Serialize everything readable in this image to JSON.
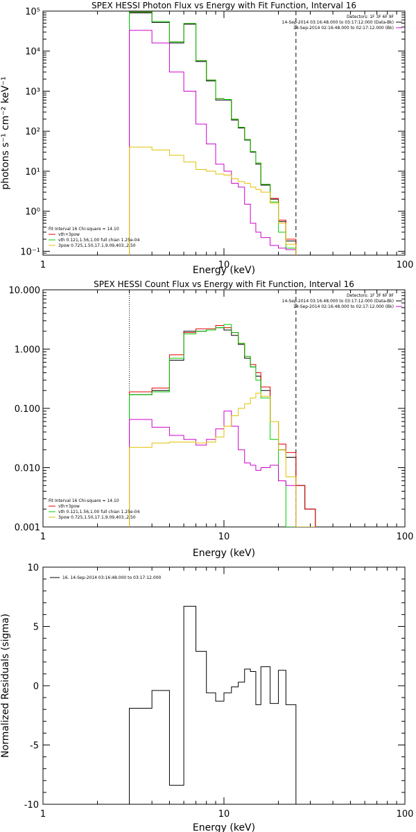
{
  "chart_data": [
    {
      "type": "line",
      "title": "SPEX HESSI Photon Flux vs Energy with Fit Function, Interval 16",
      "xlabel": "Energy (keV)",
      "ylabel": "photons s⁻¹ cm⁻² keV⁻¹",
      "xlim": [
        1,
        100
      ],
      "ylim": [
        0.08,
        100000
      ],
      "x_scale": "log",
      "y_scale": "log",
      "x_tick_labels": [
        "1",
        "10",
        "100"
      ],
      "y_tick_labels": [
        "10⁻¹",
        "10⁰",
        "10¹",
        "10²",
        "10³",
        "10⁴",
        "10⁵"
      ],
      "vlines": [
        {
          "x": 3,
          "style": "dotted"
        },
        {
          "x": 25,
          "style": "dashed"
        }
      ],
      "legend_topright": {
        "lines": [
          "Detectors: 1F 3F 6F 9F",
          "14-Sep-2014 03:16:48.000 to 03:17:12.000 (Data-Bk)",
          "14-Sep-2014 02:16:48.000 to 02:17:12.000 (Bk)"
        ],
        "colors": [
          "#000000",
          "#000000",
          "#cc00cc"
        ]
      },
      "legend_bottomleft": {
        "lines": [
          "Fit Interval 16   Chi-square = 14.10",
          "vth+3pow",
          "vth 0.121,1.56,1.00  full chian 1.25e-04",
          "3pow 0.725,1.50,17.1,9.09,403.,2.50"
        ],
        "colors": [
          "#000000",
          "#e00000",
          "#00cc00",
          "#e0c000"
        ]
      },
      "edges": [
        3,
        4,
        5,
        6,
        7,
        8,
        9,
        10,
        11,
        12,
        13,
        14,
        15,
        16,
        18,
        20,
        22,
        25
      ],
      "series": [
        {
          "color": "#000000",
          "values": [
            90000,
            52000,
            16000,
            47000,
            5500,
            1800,
            600,
            600,
            190,
            120,
            60,
            30,
            15,
            4.5,
            2,
            0.55,
            0.18
          ]
        },
        {
          "color": "#e00000",
          "values": [
            95000,
            55000,
            17000,
            49000,
            5800,
            1900,
            650,
            620,
            200,
            125,
            62,
            31,
            16,
            4.7,
            2.1,
            0.6,
            0.2
          ]
        },
        {
          "color": "#00cc00",
          "values": [
            95000,
            55000,
            17000,
            49000,
            5800,
            1900,
            650,
            620,
            200,
            125,
            62,
            31,
            16,
            4.7,
            1.7,
            0.3,
            0.12
          ]
        },
        {
          "color": "#cc00cc",
          "values": [
            33000,
            16000,
            3000,
            1000,
            150,
            48,
            15,
            10,
            5,
            4,
            1.5,
            0.5,
            0.3,
            0.22,
            0.14,
            0.12,
            0.11
          ]
        },
        {
          "color": "#e0c000",
          "values": [
            40,
            34,
            25,
            17,
            11,
            10,
            8.5,
            8,
            6.5,
            5.5,
            5,
            4,
            3.5,
            3,
            1.6,
            0.5,
            0.15
          ]
        }
      ]
    },
    {
      "type": "line",
      "title": "SPEX HESSI Count Flux vs Energy with Fit Function, Interval 16",
      "xlabel": "Energy (keV)",
      "ylabel": "",
      "xlim": [
        1,
        100
      ],
      "ylim": [
        0.001,
        10
      ],
      "x_scale": "log",
      "y_scale": "log",
      "x_tick_labels": [
        "1",
        "10",
        "100"
      ],
      "y_tick_labels": [
        "0.001",
        "0.010",
        "0.100",
        "1.000",
        "10.000"
      ],
      "vlines": [
        {
          "x": 3,
          "style": "dotted"
        },
        {
          "x": 25,
          "style": "dashed"
        }
      ],
      "legend_topright": {
        "lines": [
          "Detectors: 1F 3F 6F 9F",
          "14-Sep-2014 03:16:48.000 to 03:17:12.000 (Data-Bk)",
          "14-Sep-2014 02:16:48.000 to 02:17:12.000 (Bk)"
        ],
        "colors": [
          "#000000",
          "#000000",
          "#cc00cc"
        ]
      },
      "legend_bottomleft": {
        "lines": [
          "Fit Interval 16   Chi-square = 14.10",
          "vth+3pow",
          "vth 0.121,1.56,1.00  full chian 1.25e-04",
          "3pow 0.725,1.50,17.1,9.09,403.,2.50"
        ],
        "colors": [
          "#000000",
          "#e00000",
          "#00cc00",
          "#e0c000"
        ]
      },
      "edges": [
        3,
        4,
        5,
        6,
        7,
        8,
        9,
        10,
        11,
        12,
        13,
        14,
        15,
        16,
        18,
        20,
        22,
        25,
        28,
        32
      ],
      "series": [
        {
          "color": "#000000",
          "values": [
            0.17,
            0.2,
            0.65,
            2,
            2,
            2.1,
            2.3,
            2.1,
            1.7,
            1.2,
            0.7,
            0.5,
            0.35,
            0.2,
            0.06,
            0.02,
            0.015,
            0.005,
            0.002
          ]
        },
        {
          "color": "#e00000",
          "values": [
            0.19,
            0.22,
            0.8,
            1.9,
            2.2,
            2.2,
            2.5,
            2.3,
            1.9,
            1.25,
            0.75,
            0.55,
            0.4,
            0.23,
            0.06,
            0.025,
            0.018,
            0.005,
            0.002
          ]
        },
        {
          "color": "#00cc00",
          "values": [
            0.17,
            0.19,
            0.7,
            1.8,
            2,
            2.1,
            2.3,
            2.6,
            1.9,
            1.25,
            0.75,
            0.5,
            0.3,
            0.15,
            0.03,
            0.006,
            0.001,
            0.0009,
            0.0009
          ]
        },
        {
          "color": "#cc00cc",
          "values": [
            0.065,
            0.048,
            0.035,
            0.03,
            0.024,
            0.03,
            0.045,
            0.09,
            0.05,
            0.02,
            0.012,
            0.011,
            0.009,
            0.01,
            0.011,
            0.006,
            0.005,
            0.0009,
            0.0009
          ]
        },
        {
          "color": "#e0c000",
          "values": [
            0.022,
            0.026,
            0.027,
            0.027,
            0.026,
            0.027,
            0.033,
            0.05,
            0.075,
            0.1,
            0.12,
            0.15,
            0.18,
            0.16,
            0.06,
            0.02,
            0.007,
            0.0009,
            0.0009
          ]
        }
      ]
    },
    {
      "type": "line",
      "title": "",
      "xlabel": "Energy (keV)",
      "ylabel": "Normalized Residuals (sigma)",
      "xlim": [
        1,
        100
      ],
      "ylim": [
        -10,
        10
      ],
      "x_scale": "log",
      "y_scale": "linear",
      "x_tick_labels": [
        "1",
        "10",
        "100"
      ],
      "y_tick_labels": [
        "-10",
        "-5",
        "0",
        "5",
        "10"
      ],
      "legend": "16. 14-Sep-2014 03:16:48.000 to 03:17:12.000",
      "edges": [
        3,
        4,
        5,
        6,
        7,
        8,
        9,
        10,
        11,
        12,
        13,
        14,
        15,
        16,
        18,
        20,
        22,
        25
      ],
      "values": [
        -1.9,
        -0.4,
        -8.4,
        6.7,
        2.9,
        -0.6,
        -1.3,
        -0.6,
        -0.1,
        0.3,
        1.4,
        1.2,
        -1.6,
        1.6,
        -1.5,
        1.3,
        -1.6
      ]
    }
  ]
}
